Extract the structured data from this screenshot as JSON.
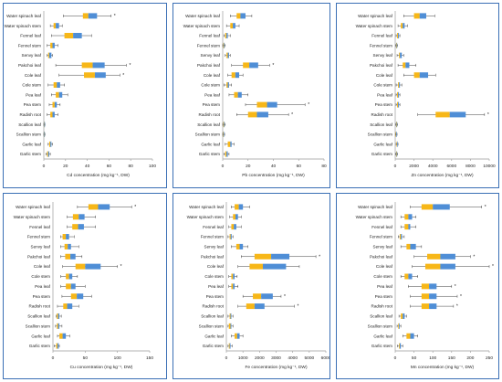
{
  "colors": {
    "q1": "#f7b718",
    "q3": "#4f8ed6",
    "whisker": "#404040",
    "border": "#3a6fb5",
    "axis": "#9a9a9a"
  },
  "chart_data": [
    {
      "type": "boxplot",
      "orientation": "horizontal",
      "xlabel": "Cd  concentration (mg kg⁻¹, DW)",
      "xlim": [
        0,
        100
      ],
      "xticks": [
        "0",
        "20",
        "40",
        "60",
        "80",
        "100"
      ],
      "categories": [
        "Water spinach leaf",
        "Water spinach stem",
        "Fennel leaf",
        "Fennel stem",
        "Senvy leaf",
        "Pakchoi leaf",
        "Cole leaf",
        "Cole stem",
        "Pea leaf",
        "Pea stem",
        "Radish root",
        "Scallion leaf",
        "Scallion stem",
        "Garlic leaf",
        "Garlic stem"
      ],
      "boxes": [
        [
          18,
          36,
          41,
          49,
          62,
          true
        ],
        [
          6,
          9,
          11,
          14,
          17,
          false
        ],
        [
          7,
          19,
          27,
          35,
          44,
          false
        ],
        [
          3,
          6,
          8,
          10,
          13,
          false
        ],
        [
          3,
          4,
          5,
          7,
          8,
          false
        ],
        [
          11,
          35,
          45,
          56,
          76,
          true
        ],
        [
          14,
          37,
          47,
          57,
          70,
          true
        ],
        [
          4,
          9,
          12,
          15,
          19,
          false
        ],
        [
          7,
          11,
          14,
          17,
          22,
          false
        ],
        [
          5,
          8,
          10,
          12,
          15,
          false
        ],
        [
          3,
          6,
          8,
          10,
          13,
          false
        ],
        [
          0,
          0.3,
          0.5,
          0.8,
          1,
          false
        ],
        [
          0,
          0.2,
          0.4,
          0.6,
          1,
          false
        ],
        [
          4,
          5,
          6,
          7,
          8,
          false
        ],
        [
          2,
          3,
          4,
          5,
          6,
          false
        ]
      ]
    },
    {
      "type": "boxplot",
      "orientation": "horizontal",
      "xlabel": "Pb  concentration (mg kg⁻¹, DW)",
      "xlim": [
        0,
        80
      ],
      "xticks": [
        "0",
        "20",
        "40",
        "60",
        "80"
      ],
      "categories": [
        "Water spinach leaf",
        "Water spinach stem",
        "Fennel leaf",
        "Fennel stem",
        "Senvy leaf",
        "Pakchoi leaf",
        "Cole leaf",
        "Cole stem",
        "Pea leaf",
        "Pea stem",
        "Radish root",
        "Scallion leaf",
        "Scallion stem",
        "Garlic leaf",
        "Garlic stem"
      ],
      "boxes": [
        [
          6,
          11,
          14,
          18,
          23,
          false
        ],
        [
          3,
          6,
          8,
          10,
          13,
          false
        ],
        [
          1,
          2,
          3,
          4,
          6,
          false
        ],
        [
          0,
          0.5,
          1,
          1.5,
          2,
          false
        ],
        [
          2,
          3,
          4,
          5,
          6,
          false
        ],
        [
          7,
          16,
          21,
          28,
          37,
          true
        ],
        [
          4,
          7,
          10,
          13,
          16,
          false
        ],
        [
          1,
          3,
          4,
          5,
          7,
          false
        ],
        [
          5,
          9,
          12,
          15,
          20,
          false
        ],
        [
          18,
          27,
          35,
          43,
          65,
          true
        ],
        [
          11,
          20,
          27,
          36,
          52,
          true
        ],
        [
          0,
          0.5,
          1,
          1.5,
          2,
          false
        ],
        [
          0,
          0.3,
          0.6,
          1,
          1.5,
          false
        ],
        [
          2,
          4,
          6,
          7,
          9,
          false
        ],
        [
          1,
          2,
          3,
          4,
          5,
          false
        ]
      ]
    },
    {
      "type": "boxplot",
      "orientation": "horizontal",
      "xlabel": "Zn concentration (mg kg⁻¹, DW)",
      "xlim": [
        0,
        10000
      ],
      "xticks": [
        "0",
        "2000",
        "4000",
        "6000",
        "8000",
        "10000"
      ],
      "categories": [
        "Water spinach leaf",
        "Water spinach stem",
        "Fennel leaf",
        "Fennel stem",
        "Senvy leaf",
        "Pakchoi leaf",
        "Cole leaf",
        "Cole stem",
        "Pea leaf",
        "Pea stem",
        "Radish root",
        "Scallion leaf",
        "Scallion stem",
        "Garlic leaf",
        "Garlic stem"
      ],
      "boxes": [
        [
          900,
          2000,
          2600,
          3300,
          4200,
          false
        ],
        [
          300,
          600,
          800,
          1000,
          1300,
          false
        ],
        [
          100,
          200,
          300,
          400,
          500,
          false
        ],
        [
          50,
          100,
          150,
          200,
          250,
          false
        ],
        [
          200,
          400,
          500,
          700,
          900,
          false
        ],
        [
          300,
          800,
          1100,
          1500,
          2200,
          false
        ],
        [
          900,
          2000,
          2600,
          3500,
          4300,
          false
        ],
        [
          100,
          300,
          400,
          500,
          700,
          false
        ],
        [
          100,
          200,
          300,
          400,
          500,
          false
        ],
        [
          100,
          200,
          300,
          400,
          500,
          false
        ],
        [
          2400,
          4300,
          5800,
          7500,
          9500,
          true
        ],
        [
          50,
          100,
          150,
          200,
          250,
          false
        ],
        [
          30,
          60,
          100,
          150,
          200,
          false
        ],
        [
          100,
          150,
          200,
          250,
          300,
          false
        ],
        [
          50,
          100,
          150,
          200,
          250,
          false
        ]
      ]
    },
    {
      "type": "boxplot",
      "orientation": "horizontal",
      "xlabel": "Cu concentration (mg kg⁻¹, DW)",
      "xlim": [
        0,
        150
      ],
      "xticks": [
        "0",
        "50",
        "100",
        "150"
      ],
      "categories": [
        "Water spinach leaf",
        "Water spinach stem",
        "Fennel leaf",
        "Fennel stem",
        "Senvy leaf",
        "Pakchoi leaf",
        "Cole leaf",
        "Cole stem",
        "Pea leaf",
        "Pea stem",
        "Radish root",
        "Scallion leaf",
        "Scallion stem",
        "Garlic leaf",
        "Garlic stem"
      ],
      "boxes": [
        [
          38,
          55,
          70,
          88,
          122,
          true
        ],
        [
          22,
          31,
          40,
          49,
          66,
          false
        ],
        [
          22,
          30,
          39,
          48,
          66,
          false
        ],
        [
          12,
          15,
          20,
          25,
          33,
          false
        ],
        [
          12,
          18,
          23,
          28,
          40,
          false
        ],
        [
          12,
          19,
          27,
          35,
          45,
          false
        ],
        [
          15,
          35,
          50,
          74,
          100,
          true
        ],
        [
          12,
          20,
          25,
          30,
          38,
          false
        ],
        [
          12,
          20,
          28,
          35,
          50,
          false
        ],
        [
          14,
          28,
          37,
          47,
          60,
          false
        ],
        [
          7,
          16,
          22,
          30,
          40,
          false
        ],
        [
          5,
          6,
          8,
          10,
          13,
          false
        ],
        [
          4,
          6,
          8,
          10,
          14,
          false
        ],
        [
          7,
          10,
          15,
          20,
          26,
          false
        ],
        [
          2,
          5,
          7,
          9,
          10,
          false
        ]
      ]
    },
    {
      "type": "boxplot",
      "orientation": "horizontal",
      "xlabel": "Fe  concentration (mg kg⁻¹, DW)",
      "xlim": [
        0,
        6000
      ],
      "xticks": [
        "0",
        "1000",
        "2000",
        "3000",
        "4000",
        "5000",
        "6000"
      ],
      "categories": [
        "Water spinach leaf",
        "Water spinach stem",
        "Fennel leaf",
        "Fennel stem",
        "Senvy leaf",
        "Pakchoi leaf",
        "Cole leaf",
        "Cole stem",
        "Pea leaf",
        "Pea stem",
        "Radish root",
        "Scallion leaf",
        "Scallion stem",
        "Garlic leaf",
        "Garlic stem"
      ],
      "boxes": [
        [
          300,
          500,
          750,
          1000,
          1400,
          false
        ],
        [
          200,
          400,
          550,
          700,
          900,
          false
        ],
        [
          150,
          300,
          450,
          600,
          900,
          false
        ],
        [
          100,
          200,
          260,
          320,
          400,
          false
        ],
        [
          300,
          600,
          800,
          1000,
          1300,
          false
        ],
        [
          900,
          1700,
          2700,
          3800,
          5400,
          true
        ],
        [
          700,
          1400,
          2200,
          3600,
          4400,
          false
        ],
        [
          150,
          300,
          400,
          500,
          650,
          false
        ],
        [
          150,
          300,
          400,
          500,
          700,
          false
        ],
        [
          1000,
          1600,
          2100,
          2800,
          3300,
          true
        ],
        [
          700,
          1200,
          1700,
          2300,
          4100,
          true
        ],
        [
          100,
          200,
          250,
          300,
          400,
          false
        ],
        [
          100,
          150,
          250,
          300,
          400,
          false
        ],
        [
          300,
          500,
          650,
          800,
          1000,
          false
        ],
        [
          100,
          150,
          200,
          250,
          350,
          false
        ]
      ]
    },
    {
      "type": "boxplot",
      "orientation": "horizontal",
      "xlabel": "Mn concentration (mg kg⁻¹, DW)",
      "xlim": [
        0,
        250
      ],
      "xticks": [
        "0",
        "50",
        "100",
        "150",
        "200",
        "250"
      ],
      "categories": [
        "Water spinach leaf",
        "Water spinach stem",
        "Fennel leaf",
        "Fennel stem",
        "Senvy leaf",
        "Pakchoi leaf",
        "Cole leaf",
        "Cole stem",
        "Pea leaf",
        "Pea stem",
        "Radish root",
        "Scallion leaf",
        "Scallion stem",
        "Garlic leaf",
        "Garlic stem"
      ],
      "boxes": [
        [
          40,
          70,
          100,
          145,
          230,
          true
        ],
        [
          15,
          25,
          35,
          45,
          55,
          false
        ],
        [
          15,
          25,
          35,
          40,
          55,
          false
        ],
        [
          8,
          12,
          15,
          18,
          24,
          false
        ],
        [
          15,
          30,
          40,
          55,
          70,
          false
        ],
        [
          50,
          85,
          120,
          160,
          200,
          true
        ],
        [
          45,
          80,
          120,
          160,
          250,
          true
        ],
        [
          15,
          25,
          35,
          45,
          60,
          false
        ],
        [
          35,
          70,
          90,
          110,
          150,
          true
        ],
        [
          40,
          70,
          90,
          110,
          165,
          true
        ],
        [
          40,
          70,
          90,
          110,
          155,
          true
        ],
        [
          10,
          15,
          20,
          25,
          30,
          false
        ],
        [
          5,
          8,
          10,
          12,
          15,
          false
        ],
        [
          20,
          30,
          40,
          50,
          60,
          false
        ],
        [
          6,
          10,
          12,
          15,
          20,
          false
        ]
      ]
    }
  ]
}
